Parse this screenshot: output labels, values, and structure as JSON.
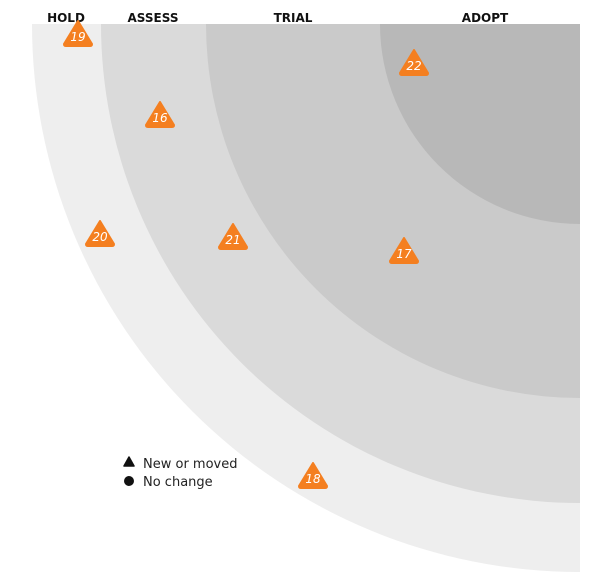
{
  "rings": [
    {
      "key": "hold",
      "label": "HOLD",
      "color": "#eeeeee"
    },
    {
      "key": "assess",
      "label": "ASSESS",
      "color": "#dadada"
    },
    {
      "key": "trial",
      "label": "TRIAL",
      "color": "#cacaca"
    },
    {
      "key": "adopt",
      "label": "ADOPT",
      "color": "#b8b8b8"
    }
  ],
  "blip_color": "#f47f20",
  "blips": [
    {
      "number": "19",
      "ring": "hold",
      "shape": "triangle"
    },
    {
      "number": "20",
      "ring": "hold",
      "shape": "triangle"
    },
    {
      "number": "18",
      "ring": "hold",
      "shape": "triangle"
    },
    {
      "number": "16",
      "ring": "assess",
      "shape": "triangle"
    },
    {
      "number": "21",
      "ring": "assess",
      "shape": "triangle"
    },
    {
      "number": "17",
      "ring": "trial",
      "shape": "triangle"
    },
    {
      "number": "22",
      "ring": "adopt",
      "shape": "triangle"
    }
  ],
  "legend": {
    "new_or_moved": "New or moved",
    "no_change": "No change"
  }
}
